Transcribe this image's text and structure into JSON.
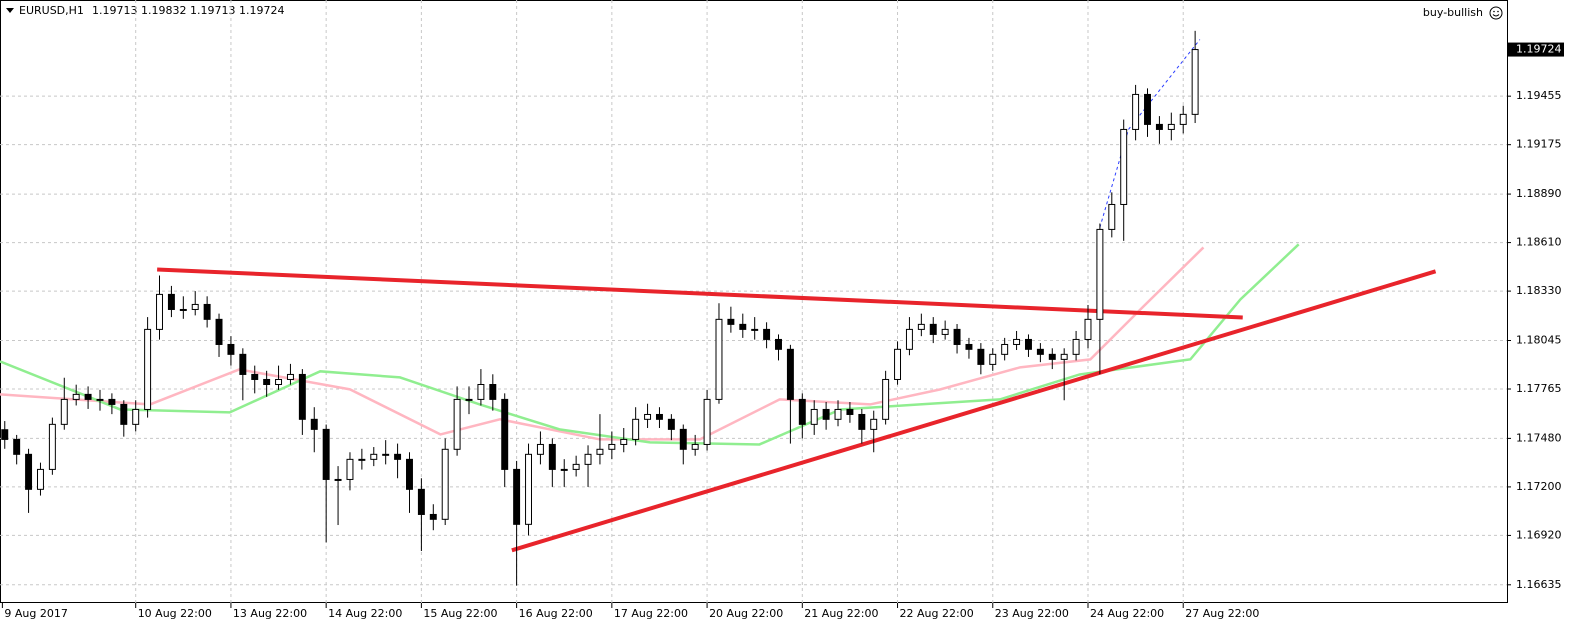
{
  "header": {
    "symbol": "EURUSD,H1",
    "ohlc": [
      1.19713,
      1.19832,
      1.19713,
      1.19724
    ],
    "expert": "buy-bullish"
  },
  "chart_data": {
    "type": "candlestick",
    "ylim": [
      1.1653,
      1.2001
    ],
    "yticks": [
      1.19455,
      1.19175,
      {
        "value": 1.1889,
        "label": "1.18890"
      },
      {
        "value": 1.1861,
        "label": "1.18610"
      },
      {
        "value": 1.1833,
        "label": "1.18330"
      },
      1.18045,
      1.17765,
      {
        "value": 1.1748,
        "label": "1.17480"
      },
      {
        "value": 1.172,
        "label": "1.17200"
      },
      {
        "value": 1.1692,
        "label": "1.16920"
      },
      1.16635
    ],
    "xlim": [
      -0.4,
      126.2
    ],
    "xticks": [
      {
        "value": -0.2,
        "label": "9 Aug 2017"
      },
      {
        "value": 11,
        "label": "10 Aug 22:00"
      },
      {
        "value": 19,
        "label": "13 Aug 22:00"
      },
      {
        "value": 27,
        "label": "14 Aug 22:00"
      },
      {
        "value": 35,
        "label": "15 Aug 22:00"
      },
      {
        "value": 43,
        "label": "16 Aug 22:00"
      },
      {
        "value": 51,
        "label": "17 Aug 22:00"
      },
      {
        "value": 59,
        "label": "20 Aug 22:00"
      },
      {
        "value": 67,
        "label": "21 Aug 22:00"
      },
      {
        "value": 75,
        "label": "22 Aug 22:00"
      },
      {
        "value": 83,
        "label": "23 Aug 22:00"
      },
      {
        "value": 91,
        "label": "24 Aug 22:00"
      },
      {
        "value": 99,
        "label": "27 Aug 22:00"
      }
    ],
    "grid": true,
    "up_color": "#ffffff",
    "down_color": "#000000",
    "candles": [
      [
        1.1753,
        1.1758,
        1.1742,
        1.17474
      ],
      [
        1.17474,
        1.175,
        1.1733,
        1.17388
      ],
      [
        1.17388,
        1.1742,
        1.1705,
        1.17186
      ],
      [
        1.17186,
        1.1734,
        1.1715,
        1.17301
      ],
      [
        1.17301,
        1.176,
        1.1727,
        1.17561
      ],
      [
        1.17561,
        1.1783,
        1.1753,
        1.17705
      ],
      [
        1.17705,
        1.1779,
        1.1767,
        1.17734
      ],
      [
        1.17734,
        1.1778,
        1.1765,
        1.17705
      ],
      [
        1.17705,
        1.1776,
        1.1764,
        1.17705
      ],
      [
        1.17705,
        1.1774,
        1.1762,
        1.17676
      ],
      [
        1.17676,
        1.177,
        1.1749,
        1.17561
      ],
      [
        1.17561,
        1.177,
        1.1752,
        1.17647
      ],
      [
        1.17647,
        1.1818,
        1.176,
        1.18109
      ],
      [
        1.18109,
        1.1842,
        1.1805,
        1.18311
      ],
      [
        1.18311,
        1.1836,
        1.1818,
        1.18224
      ],
      [
        1.18224,
        1.183,
        1.1817,
        1.18224
      ],
      [
        1.18224,
        1.1833,
        1.1819,
        1.18253
      ],
      [
        1.18253,
        1.183,
        1.1812,
        1.18167
      ],
      [
        1.18167,
        1.182,
        1.1795,
        1.18022
      ],
      [
        1.18022,
        1.1807,
        1.179,
        1.17965
      ],
      [
        1.17965,
        1.18,
        1.177,
        1.17849
      ],
      [
        1.17849,
        1.179,
        1.1774,
        1.1782
      ],
      [
        1.1782,
        1.1787,
        1.1772,
        1.17791
      ],
      [
        1.17791,
        1.179,
        1.1776,
        1.1782
      ],
      [
        1.1782,
        1.1791,
        1.1779,
        1.17849
      ],
      [
        1.17849,
        1.1788,
        1.175,
        1.1759
      ],
      [
        1.1759,
        1.1766,
        1.174,
        1.17532
      ],
      [
        1.17532,
        1.1756,
        1.1688,
        1.17243
      ],
      [
        1.17243,
        1.1732,
        1.1698,
        1.17243
      ],
      [
        1.17243,
        1.174,
        1.1718,
        1.17359
      ],
      [
        1.17359,
        1.1742,
        1.173,
        1.17359
      ],
      [
        1.17359,
        1.1743,
        1.1732,
        1.17388
      ],
      [
        1.17388,
        1.1747,
        1.1733,
        1.17388
      ],
      [
        1.17388,
        1.1745,
        1.1725,
        1.17359
      ],
      [
        1.17359,
        1.174,
        1.1705,
        1.17186
      ],
      [
        1.17186,
        1.1725,
        1.1683,
        1.17041
      ],
      [
        1.17041,
        1.171,
        1.1695,
        1.17013
      ],
      [
        1.17013,
        1.1748,
        1.1698,
        1.17417
      ],
      [
        1.17417,
        1.1778,
        1.1738,
        1.17705
      ],
      [
        1.17705,
        1.1778,
        1.1762,
        1.17705
      ],
      [
        1.17705,
        1.1788,
        1.1767,
        1.17791
      ],
      [
        1.17791,
        1.1785,
        1.1764,
        1.17705
      ],
      [
        1.17705,
        1.1774,
        1.172,
        1.17301
      ],
      [
        1.17301,
        1.1735,
        1.1663,
        1.16984
      ],
      [
        1.16984,
        1.1745,
        1.1692,
        1.17388
      ],
      [
        1.17388,
        1.1752,
        1.1733,
        1.17445
      ],
      [
        1.17445,
        1.1748,
        1.172,
        1.17301
      ],
      [
        1.17301,
        1.1736,
        1.172,
        1.17301
      ],
      [
        1.17301,
        1.1738,
        1.1726,
        1.1733
      ],
      [
        1.1733,
        1.1744,
        1.172,
        1.17388
      ],
      [
        1.17388,
        1.1762,
        1.1733,
        1.17417
      ],
      [
        1.17417,
        1.1752,
        1.1736,
        1.17445
      ],
      [
        1.17445,
        1.1754,
        1.174,
        1.17474
      ],
      [
        1.17474,
        1.1766,
        1.1744,
        1.1759
      ],
      [
        1.1759,
        1.1768,
        1.1754,
        1.17618
      ],
      [
        1.17618,
        1.1766,
        1.1754,
        1.1759
      ],
      [
        1.1759,
        1.1762,
        1.1747,
        1.17532
      ],
      [
        1.17532,
        1.1756,
        1.1733,
        1.17417
      ],
      [
        1.17417,
        1.175,
        1.1738,
        1.17445
      ],
      [
        1.17445,
        1.1776,
        1.1741,
        1.17705
      ],
      [
        1.17705,
        1.1826,
        1.1768,
        1.18167
      ],
      [
        1.18167,
        1.1824,
        1.1809,
        1.18138
      ],
      [
        1.18138,
        1.182,
        1.1806,
        1.18109
      ],
      [
        1.18109,
        1.1818,
        1.1805,
        1.18109
      ],
      [
        1.18109,
        1.1815,
        1.18,
        1.18051
      ],
      [
        1.18051,
        1.1808,
        1.1793,
        1.17994
      ],
      [
        1.17994,
        1.1802,
        1.1745,
        1.17705
      ],
      [
        1.17705,
        1.1774,
        1.1748,
        1.17561
      ],
      [
        1.17561,
        1.177,
        1.175,
        1.17647
      ],
      [
        1.17647,
        1.1769,
        1.1753,
        1.1759
      ],
      [
        1.1759,
        1.177,
        1.1755,
        1.17647
      ],
      [
        1.17647,
        1.1769,
        1.1757,
        1.17618
      ],
      [
        1.17618,
        1.1765,
        1.1745,
        1.17532
      ],
      [
        1.17532,
        1.1764,
        1.174,
        1.1759
      ],
      [
        1.1759,
        1.1787,
        1.1756,
        1.1782
      ],
      [
        1.1782,
        1.1804,
        1.1779,
        1.17994
      ],
      [
        1.17994,
        1.1818,
        1.1796,
        1.18109
      ],
      [
        1.18109,
        1.182,
        1.1807,
        1.18138
      ],
      [
        1.18138,
        1.1818,
        1.1803,
        1.1808
      ],
      [
        1.1808,
        1.1816,
        1.1805,
        1.18109
      ],
      [
        1.18109,
        1.1814,
        1.1797,
        1.18022
      ],
      [
        1.18022,
        1.1806,
        1.1794,
        1.17994
      ],
      [
        1.17994,
        1.1803,
        1.1785,
        1.17907
      ],
      [
        1.17907,
        1.18,
        1.1787,
        1.17965
      ],
      [
        1.17965,
        1.1806,
        1.1793,
        1.18022
      ],
      [
        1.18022,
        1.181,
        1.1799,
        1.18051
      ],
      [
        1.18051,
        1.1808,
        1.1795,
        1.17994
      ],
      [
        1.17994,
        1.1803,
        1.1792,
        1.17965
      ],
      [
        1.17965,
        1.18,
        1.1788,
        1.17936
      ],
      [
        1.17936,
        1.18,
        1.177,
        1.17965
      ],
      [
        1.17965,
        1.181,
        1.1793,
        1.18051
      ],
      [
        1.18051,
        1.1825,
        1.18,
        1.18167
      ],
      [
        1.18167,
        1.1872,
        1.1785,
        1.18686
      ],
      [
        1.18686,
        1.189,
        1.1864,
        1.1883
      ],
      [
        1.1883,
        1.1932,
        1.1862,
        1.19263
      ],
      [
        1.19263,
        1.1952,
        1.192,
        1.19465
      ],
      [
        1.19465,
        1.195,
        1.1922,
        1.19292
      ],
      [
        1.19292,
        1.1934,
        1.1918,
        1.19263
      ],
      [
        1.19263,
        1.1936,
        1.192,
        1.19292
      ],
      [
        1.19292,
        1.194,
        1.1924,
        1.1935
      ],
      [
        1.1935,
        1.19832,
        1.193,
        1.19724
      ]
    ],
    "lines": [
      {
        "color": "#ffb6c1",
        "x": [
          -0.4,
          12.2,
          19.7,
          29,
          36.6,
          41.6,
          50,
          58.4,
          65.1,
          72.7,
          78.6,
          85.3,
          91.2,
          95.4,
          100.7
        ],
        "values": [
          1.17734,
          1.17676,
          1.17878,
          1.17763,
          1.17503,
          1.1759,
          1.17474,
          1.17474,
          1.17705,
          1.17676,
          1.17763,
          1.1789,
          1.17936,
          1.18224,
          1.18582
        ],
        "width": 2.5
      },
      {
        "color": "#90ee90",
        "x": [
          -0.4,
          9.7,
          18.9,
          26.5,
          33.2,
          39.9,
          46.6,
          54.2,
          63.4,
          70.2,
          76.9,
          83.6,
          90.3,
          99.6,
          103.8,
          108.7
        ],
        "values": [
          1.17924,
          1.17647,
          1.1763,
          1.17867,
          1.17832,
          1.17676,
          1.17532,
          1.17457,
          1.17445,
          1.17647,
          1.17676,
          1.17705,
          1.17849,
          1.17936,
          1.18282,
          1.186
        ],
        "width": 2.5
      },
      {
        "color": "#e8242b",
        "x": [
          12.8,
          104
        ],
        "values": [
          1.18455,
          1.18178
        ],
        "width": 4
      },
      {
        "color": "#e8242b",
        "x": [
          42.6,
          120.2
        ],
        "values": [
          1.16834,
          1.18444
        ],
        "width": 4
      },
      {
        "color": "#2a3cff",
        "x": [
          92,
          94.4,
          100.4
        ],
        "values": [
          1.18698,
          1.19263,
          1.19782
        ],
        "width": 1,
        "dash": "3,3"
      }
    ]
  }
}
